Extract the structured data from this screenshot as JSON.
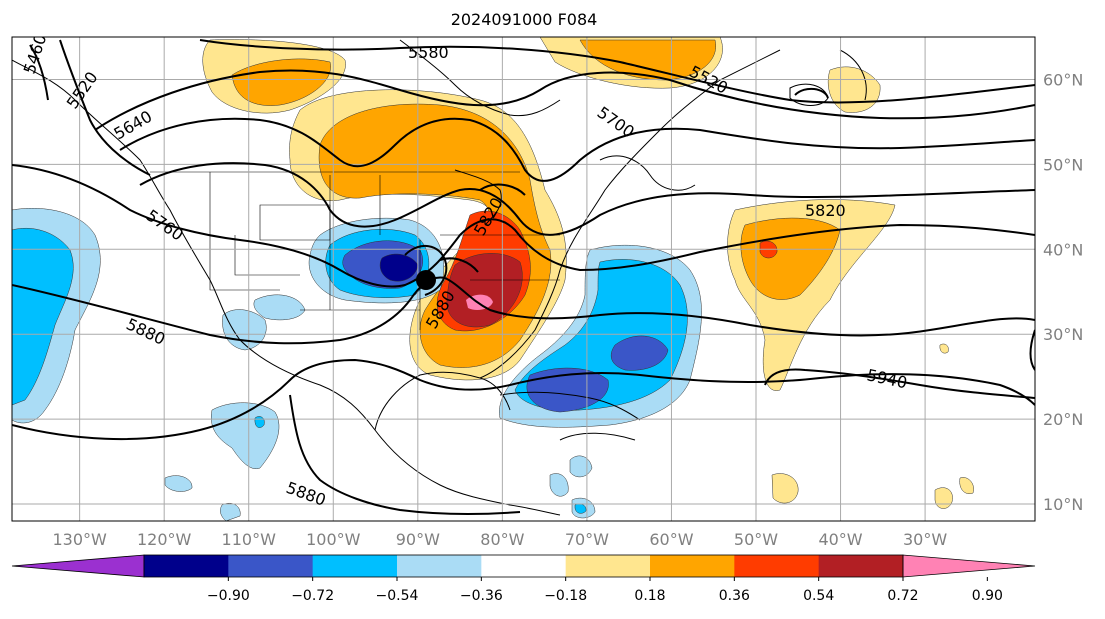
{
  "title": "2024091000 F084",
  "map": {
    "lon_labels": [
      "130°W",
      "120°W",
      "110°W",
      "100°W",
      "90°W",
      "80°W",
      "70°W",
      "60°W",
      "50°W",
      "40°W",
      "30°W"
    ],
    "lat_labels": [
      "60°N",
      "50°N",
      "40°N",
      "30°N",
      "20°N",
      "10°N"
    ],
    "lon_values": [
      -130,
      -120,
      -110,
      -100,
      -90,
      -80,
      -70,
      -60,
      -50,
      -40,
      -30
    ],
    "lat_values": [
      60,
      50,
      40,
      30,
      20,
      10
    ],
    "lon_range": [
      -138,
      -17
    ],
    "lat_range": [
      8,
      65
    ],
    "grid": true
  },
  "contours": {
    "labels": [
      "5460",
      "5520",
      "5580",
      "5520",
      "5640",
      "5700",
      "5760",
      "5820",
      "5880",
      "5820",
      "5880",
      "5940",
      "5880"
    ]
  },
  "colorbar": {
    "ticks": [
      "−0.90",
      "−0.72",
      "−0.54",
      "−0.36",
      "−0.18",
      "0.18",
      "0.36",
      "0.54",
      "0.72",
      "0.90"
    ],
    "colors": [
      "#9b30d0",
      "#00008b",
      "#3a56c8",
      "#00bfff",
      "#aadcf5",
      "#ffffff",
      "#ffe68f",
      "#ffa500",
      "#ff3c00",
      "#b21f24",
      "#ff82b4"
    ],
    "extend": "both"
  }
}
